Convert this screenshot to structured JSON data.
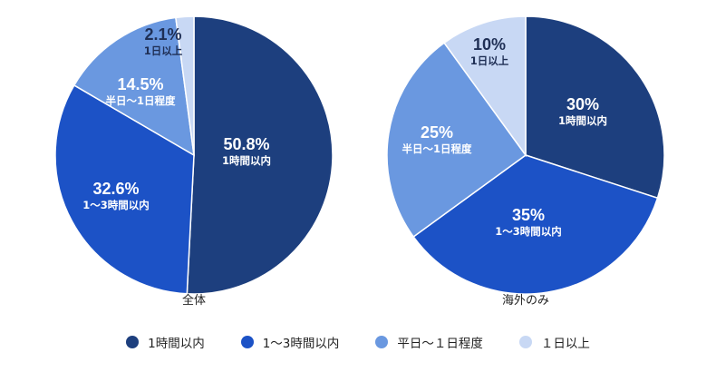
{
  "colors": {
    "within_1h": "#1d3f7e",
    "1_to_3h": "#1c52c6",
    "half_to_1day": "#6a98e0",
    "over_1day": "#c8d8f4",
    "label_dark_bg": "#ffffff",
    "label_light_bg": "#1f2f55"
  },
  "legend": [
    {
      "label": "1時間以内",
      "color": "#1d3f7e"
    },
    {
      "label": "1～3時間以内",
      "color": "#1c52c6"
    },
    {
      "label": "平日～１日程度",
      "color": "#6a98e0"
    },
    {
      "label": "１日以上",
      "color": "#c8d8f4"
    }
  ],
  "chart_data": [
    {
      "type": "pie",
      "title": "全体",
      "slices": [
        {
          "label": "1時間以内",
          "value": 50.8,
          "pct_text": "50.8%",
          "color": "#1d3f7e",
          "text_color": "#ffffff"
        },
        {
          "label": "1～3時間以内",
          "value": 32.6,
          "pct_text": "32.6%",
          "color": "#1c52c6",
          "text_color": "#ffffff"
        },
        {
          "label": "半日～1日程度",
          "value": 14.5,
          "pct_text": "14.5%",
          "color": "#6a98e0",
          "text_color": "#ffffff"
        },
        {
          "label": "1日以上",
          "value": 2.1,
          "pct_text": "2.1%",
          "color": "#c8d8f4",
          "text_color": "#1f2f55"
        }
      ]
    },
    {
      "type": "pie",
      "title": "海外のみ",
      "slices": [
        {
          "label": "1時間以内",
          "value": 30,
          "pct_text": "30%",
          "color": "#1d3f7e",
          "text_color": "#ffffff"
        },
        {
          "label": "1～3時間以内",
          "value": 35,
          "pct_text": "35%",
          "color": "#1c52c6",
          "text_color": "#ffffff"
        },
        {
          "label": "半日～1日程度",
          "value": 25,
          "pct_text": "25%",
          "color": "#6a98e0",
          "text_color": "#ffffff"
        },
        {
          "label": "1日以上",
          "value": 10,
          "pct_text": "10%",
          "color": "#c8d8f4",
          "text_color": "#1f2f55"
        }
      ]
    }
  ]
}
